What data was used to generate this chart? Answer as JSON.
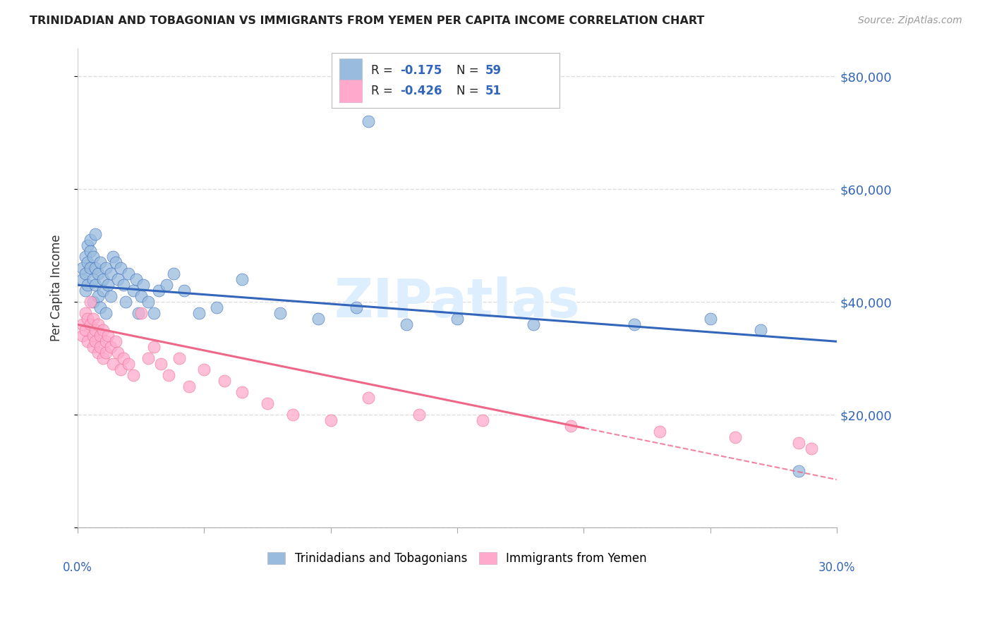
{
  "title": "TRINIDADIAN AND TOBAGONIAN VS IMMIGRANTS FROM YEMEN PER CAPITA INCOME CORRELATION CHART",
  "source": "Source: ZipAtlas.com",
  "ylabel": "Per Capita Income",
  "yticks": [
    0,
    20000,
    40000,
    60000,
    80000
  ],
  "ytick_labels": [
    "",
    "$20,000",
    "$40,000",
    "$60,000",
    "$80,000"
  ],
  "xlim": [
    0.0,
    0.3
  ],
  "ylim": [
    0,
    85000
  ],
  "blue_color": "#99BBDD",
  "pink_color": "#FFAACC",
  "trendline_blue": "#3366BB",
  "trendline_pink": "#EE6688",
  "watermark": "ZIPatlas",
  "watermark_color": "#DDEEFF",
  "blue_scatter_x": [
    0.002,
    0.002,
    0.003,
    0.003,
    0.003,
    0.004,
    0.004,
    0.004,
    0.005,
    0.005,
    0.005,
    0.006,
    0.006,
    0.006,
    0.007,
    0.007,
    0.007,
    0.008,
    0.008,
    0.009,
    0.009,
    0.01,
    0.01,
    0.011,
    0.011,
    0.012,
    0.013,
    0.013,
    0.014,
    0.015,
    0.016,
    0.017,
    0.018,
    0.019,
    0.02,
    0.022,
    0.023,
    0.024,
    0.025,
    0.026,
    0.028,
    0.03,
    0.032,
    0.035,
    0.038,
    0.042,
    0.048,
    0.055,
    0.065,
    0.08,
    0.095,
    0.11,
    0.13,
    0.15,
    0.18,
    0.22,
    0.25,
    0.27,
    0.285
  ],
  "blue_scatter_y": [
    44000,
    46000,
    45000,
    48000,
    42000,
    50000,
    47000,
    43000,
    46000,
    51000,
    49000,
    44000,
    48000,
    40000,
    46000,
    43000,
    52000,
    45000,
    41000,
    47000,
    39000,
    44000,
    42000,
    46000,
    38000,
    43000,
    45000,
    41000,
    48000,
    47000,
    44000,
    46000,
    43000,
    40000,
    45000,
    42000,
    44000,
    38000,
    41000,
    43000,
    40000,
    38000,
    42000,
    43000,
    45000,
    42000,
    38000,
    39000,
    44000,
    38000,
    37000,
    39000,
    36000,
    37000,
    36000,
    36000,
    37000,
    35000,
    10000
  ],
  "blue_outlier_x": [
    0.115
  ],
  "blue_outlier_y": [
    72000
  ],
  "pink_scatter_x": [
    0.002,
    0.002,
    0.003,
    0.003,
    0.004,
    0.004,
    0.005,
    0.005,
    0.006,
    0.006,
    0.006,
    0.007,
    0.007,
    0.008,
    0.008,
    0.009,
    0.009,
    0.01,
    0.01,
    0.011,
    0.011,
    0.012,
    0.013,
    0.014,
    0.015,
    0.016,
    0.017,
    0.018,
    0.02,
    0.022,
    0.025,
    0.028,
    0.03,
    0.033,
    0.036,
    0.04,
    0.044,
    0.05,
    0.058,
    0.065,
    0.075,
    0.085,
    0.1,
    0.115,
    0.135,
    0.16,
    0.195,
    0.23,
    0.26,
    0.285,
    0.29
  ],
  "pink_scatter_y": [
    36000,
    34000,
    38000,
    35000,
    37000,
    33000,
    36000,
    40000,
    34000,
    32000,
    37000,
    35000,
    33000,
    36000,
    31000,
    34000,
    32000,
    30000,
    35000,
    33000,
    31000,
    34000,
    32000,
    29000,
    33000,
    31000,
    28000,
    30000,
    29000,
    27000,
    38000,
    30000,
    32000,
    29000,
    27000,
    30000,
    25000,
    28000,
    26000,
    24000,
    22000,
    20000,
    19000,
    23000,
    20000,
    19000,
    18000,
    17000,
    16000,
    15000,
    14000
  ],
  "background_color": "#FFFFFF",
  "grid_color": "#DDDDDD",
  "title_color": "#222222",
  "axis_label_color": "#333333",
  "ytick_color": "#3366BB",
  "xtick_color": "#3366BB",
  "legend_text_color": "#222222",
  "legend_val_color": "#3366BB"
}
